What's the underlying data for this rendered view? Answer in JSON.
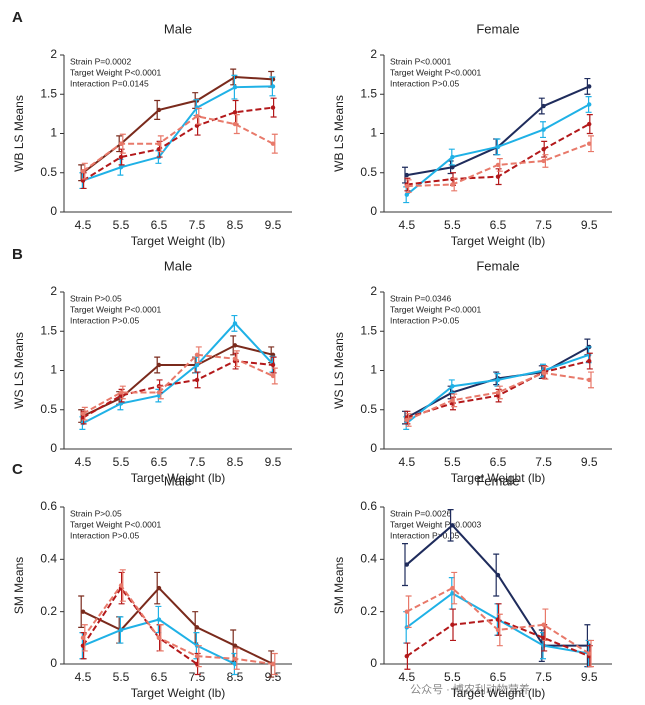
{
  "chart_data": [
    {
      "type": "line",
      "panel": "A",
      "title": "Male",
      "xlabel": "Target Weight (lb)",
      "ylabel": "WB LS Means",
      "annotations": [
        "Strain P=0.0002",
        "Target Weight P<0.0001",
        "Interaction P=0.0145"
      ],
      "categories": [
        "4.5",
        "5.5",
        "6.5",
        "7.5",
        "8.5",
        "9.5"
      ],
      "ylim": [
        0,
        2
      ],
      "yticks": [
        0,
        0.5,
        1,
        1.5,
        2
      ],
      "grid": false,
      "series": [
        {
          "color": "#7a2a1c",
          "dashed": false,
          "values": [
            0.5,
            0.87,
            1.3,
            1.42,
            1.72,
            1.69
          ],
          "errors": [
            0.1,
            0.1,
            0.12,
            0.1,
            0.1,
            0.1
          ]
        },
        {
          "color": "#1fb1e6",
          "dashed": false,
          "values": [
            0.4,
            0.57,
            0.7,
            1.33,
            1.59,
            1.6
          ],
          "errors": [
            0.1,
            0.1,
            0.08,
            0.1,
            0.15,
            0.12
          ]
        },
        {
          "color": "#b3181a",
          "dashed": true,
          "values": [
            0.4,
            0.7,
            0.8,
            1.1,
            1.27,
            1.33
          ],
          "errors": [
            0.1,
            0.1,
            0.1,
            0.12,
            0.15,
            0.12
          ]
        },
        {
          "color": "#e8796a",
          "dashed": true,
          "values": [
            0.52,
            0.87,
            0.87,
            1.22,
            1.12,
            0.87
          ],
          "errors": [
            0.1,
            0.12,
            0.1,
            0.1,
            0.12,
            0.12
          ]
        }
      ]
    },
    {
      "type": "line",
      "title": "Female",
      "xlabel": "Target Weight (lb)",
      "ylabel": "WB LS Means",
      "annotations": [
        "Strain P<0.0001",
        "Target Weight P<0.0001",
        "Interaction P>0.05"
      ],
      "categories": [
        "4.5",
        "5.5",
        "6.5",
        "7.5",
        "9.5"
      ],
      "ylim": [
        0,
        2
      ],
      "yticks": [
        0,
        0.5,
        1,
        1.5,
        2
      ],
      "grid": false,
      "series": [
        {
          "color": "#1f2c5c",
          "dashed": false,
          "values": [
            0.47,
            0.57,
            0.83,
            1.35,
            1.6
          ],
          "errors": [
            0.1,
            0.08,
            0.1,
            0.1,
            0.1
          ]
        },
        {
          "color": "#1fb1e6",
          "dashed": false,
          "values": [
            0.22,
            0.7,
            0.83,
            1.05,
            1.37
          ],
          "errors": [
            0.1,
            0.1,
            0.1,
            0.1,
            0.1
          ]
        },
        {
          "color": "#b3181a",
          "dashed": true,
          "values": [
            0.35,
            0.42,
            0.45,
            0.8,
            1.12
          ],
          "errors": [
            0.08,
            0.08,
            0.1,
            0.1,
            0.12
          ]
        },
        {
          "color": "#e8796a",
          "dashed": true,
          "values": [
            0.33,
            0.35,
            0.6,
            0.65,
            0.87
          ],
          "errors": [
            0.08,
            0.08,
            0.08,
            0.08,
            0.1
          ]
        }
      ]
    },
    {
      "type": "line",
      "panel": "B",
      "title": "Male",
      "xlabel": "Target Weight (lb)",
      "ylabel": "WS LS Means",
      "annotations": [
        "Strain P>0.05",
        "Target Weight P<0.0001",
        "Interaction P>0.05"
      ],
      "categories": [
        "4.5",
        "5.5",
        "6.5",
        "7.5",
        "8.5",
        "9.5"
      ],
      "ylim": [
        0,
        2
      ],
      "yticks": [
        0,
        0.5,
        1,
        1.5,
        2
      ],
      "grid": false,
      "series": [
        {
          "color": "#7a2a1c",
          "dashed": false,
          "values": [
            0.42,
            0.65,
            1.07,
            1.07,
            1.32,
            1.2
          ],
          "errors": [
            0.08,
            0.08,
            0.1,
            0.1,
            0.12,
            0.1
          ]
        },
        {
          "color": "#1fb1e6",
          "dashed": false,
          "values": [
            0.33,
            0.58,
            0.68,
            1.07,
            1.6,
            1.08
          ],
          "errors": [
            0.08,
            0.08,
            0.08,
            0.1,
            0.1,
            0.1
          ]
        },
        {
          "color": "#b3181a",
          "dashed": true,
          "values": [
            0.4,
            0.68,
            0.8,
            0.88,
            1.12,
            1.07
          ],
          "errors": [
            0.08,
            0.08,
            0.08,
            0.1,
            0.1,
            0.1
          ]
        },
        {
          "color": "#e8796a",
          "dashed": true,
          "values": [
            0.45,
            0.72,
            0.72,
            1.2,
            1.15,
            0.93
          ],
          "errors": [
            0.08,
            0.08,
            0.08,
            0.1,
            0.1,
            0.1
          ]
        }
      ]
    },
    {
      "type": "line",
      "title": "Female",
      "xlabel": "Target Weight (lb)",
      "ylabel": "WS LS Means",
      "annotations": [
        "Strain P=0.0346",
        "Target Weight P<0.0001",
        "Interaction P>0.05"
      ],
      "categories": [
        "4.5",
        "5.5",
        "6.5",
        "7.5",
        "9.5"
      ],
      "ylim": [
        0,
        2
      ],
      "yticks": [
        0,
        0.5,
        1,
        1.5,
        2
      ],
      "grid": false,
      "series": [
        {
          "color": "#1f2c5c",
          "dashed": false,
          "values": [
            0.4,
            0.72,
            0.9,
            0.98,
            1.3
          ],
          "errors": [
            0.08,
            0.08,
            0.08,
            0.08,
            0.1
          ]
        },
        {
          "color": "#1fb1e6",
          "dashed": false,
          "values": [
            0.33,
            0.8,
            0.88,
            1.0,
            1.2
          ],
          "errors": [
            0.08,
            0.08,
            0.08,
            0.08,
            0.1
          ]
        },
        {
          "color": "#b3181a",
          "dashed": true,
          "values": [
            0.4,
            0.58,
            0.68,
            0.98,
            1.12
          ],
          "errors": [
            0.08,
            0.08,
            0.08,
            0.08,
            0.1
          ]
        },
        {
          "color": "#e8796a",
          "dashed": true,
          "values": [
            0.37,
            0.62,
            0.72,
            0.97,
            0.88
          ],
          "errors": [
            0.08,
            0.08,
            0.08,
            0.08,
            0.1
          ]
        }
      ]
    },
    {
      "type": "line",
      "panel": "C",
      "title": "Male",
      "xlabel": "Target Weight (lb)",
      "ylabel": "SM Means",
      "annotations": [
        "Strain P>0.05",
        "Target Weight P<0.0001",
        "Interaction P>0.05"
      ],
      "categories": [
        "4.5",
        "5.5",
        "6.5",
        "7.5",
        "8.5",
        "9.5"
      ],
      "ylim": [
        0,
        0.6
      ],
      "yticks": [
        0,
        0.2,
        0.4,
        0.6
      ],
      "grid": false,
      "series": [
        {
          "color": "#7a2a1c",
          "dashed": false,
          "values": [
            0.2,
            0.13,
            0.29,
            0.14,
            0.07,
            0
          ],
          "errors": [
            0.06,
            0.05,
            0.06,
            0.06,
            0.06,
            0.05
          ]
        },
        {
          "color": "#1fb1e6",
          "dashed": false,
          "values": [
            0.07,
            0.13,
            0.17,
            0.07,
            0,
            null
          ],
          "errors": [
            0.05,
            0.05,
            0.05,
            0.05,
            0.04,
            null
          ]
        },
        {
          "color": "#b3181a",
          "dashed": true,
          "values": [
            0.07,
            0.29,
            0.1,
            0,
            null,
            null
          ],
          "errors": [
            0.05,
            0.06,
            0.05,
            0.04,
            null,
            null
          ]
        },
        {
          "color": "#e8796a",
          "dashed": true,
          "values": [
            0.1,
            0.3,
            0.1,
            0.03,
            0.02,
            0
          ],
          "errors": [
            0.05,
            0.06,
            0.05,
            0.04,
            0.04,
            0.04
          ]
        }
      ]
    },
    {
      "type": "line",
      "title": "Female",
      "xlabel": "Target Weight (lb)",
      "ylabel": "SM Means",
      "annotations": [
        "Strain P=0.0026",
        "Target Weight P=0.0003",
        "Interaction P>0.05"
      ],
      "categories": [
        "4.5",
        "5.5",
        "6.5",
        "7.5",
        "9.5"
      ],
      "ylim": [
        0,
        0.6
      ],
      "yticks": [
        0,
        0.2,
        0.4,
        0.6
      ],
      "grid": false,
      "series": [
        {
          "color": "#1f2c5c",
          "dashed": false,
          "values": [
            0.38,
            0.53,
            0.34,
            0.07,
            0.07
          ],
          "errors": [
            0.08,
            0.06,
            0.08,
            0.06,
            0.08
          ]
        },
        {
          "color": "#1fb1e6",
          "dashed": false,
          "values": [
            0.14,
            0.27,
            0.17,
            0.07,
            0.04
          ],
          "errors": [
            0.06,
            0.06,
            0.06,
            0.05,
            0.05
          ]
        },
        {
          "color": "#b3181a",
          "dashed": true,
          "values": [
            0.03,
            0.15,
            0.17,
            0.1,
            0.03
          ],
          "errors": [
            0.05,
            0.06,
            0.06,
            0.05,
            0.04
          ]
        },
        {
          "color": "#e8796a",
          "dashed": true,
          "values": [
            0.2,
            0.29,
            0.13,
            0.15,
            0.04
          ],
          "errors": [
            0.06,
            0.06,
            0.06,
            0.06,
            0.05
          ]
        }
      ]
    }
  ],
  "watermark": "公众号 · 博农利动物营养"
}
